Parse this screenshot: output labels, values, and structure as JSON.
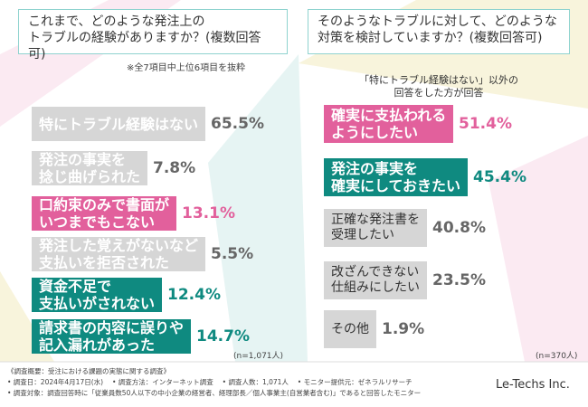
{
  "chart_data": [
    {
      "type": "bar",
      "title": "これまで、どのような発注上の\nトラブルの経験がありますか？(複数回答可)",
      "note": "※全7項目中上位6項目を抜粋",
      "categories": [
        "特にトラブル経験はない",
        "発注の事実を\n捻じ曲げられた",
        "口約束のみで書面が\nいつまでもこない",
        "発注した覚えがないなど\n支払いを拒否された",
        "資金不足で\n支払いがされない",
        "請求書の内容に誤りや\n記入漏れがあった"
      ],
      "values": [
        65.5,
        7.8,
        13.1,
        5.5,
        12.4,
        14.7
      ],
      "value_labels": [
        "65.5%",
        "7.8%",
        "13.1%",
        "5.5%",
        "12.4%",
        "14.7%"
      ],
      "colors": [
        "#d6d6d6",
        "#d6d6d6",
        "#e2609c",
        "#d6d6d6",
        "#0f8a80",
        "#0f8a80"
      ],
      "value_colors": [
        "#666666",
        "#666666",
        "#e2609c",
        "#666666",
        "#0f8a80",
        "#0f8a80"
      ],
      "n_label": "(n=1,071人)"
    },
    {
      "type": "bar",
      "title": "そのようなトラブルに対して、どのような\n対策を検討していますか？(複数回答可)",
      "subtitle": "「特にトラブル経験はない」以外の\n回答をした方が回答",
      "categories": [
        "確実に支払われる\nようにしたい",
        "発注の事実を\n確実にしておきたい",
        "正確な発注書を\n受理したい",
        "改ざんできない\n仕組みにしたい",
        "その他"
      ],
      "values": [
        51.4,
        45.4,
        40.8,
        23.5,
        1.9
      ],
      "value_labels": [
        "51.4%",
        "45.4%",
        "40.8%",
        "23.5%",
        "1.9%"
      ],
      "colors": [
        "#e2609c",
        "#0f8a80",
        "#d6d6d6",
        "#d6d6d6",
        "#d6d6d6"
      ],
      "value_colors": [
        "#e2609c",
        "#0f8a80",
        "#666666",
        "#666666",
        "#666666"
      ],
      "n_label": "(n=370人)"
    }
  ],
  "footer": {
    "lines": [
      "《調査概要：受注における課題の実態に関する調査》",
      "• 調査日：2024年4月17日(水)　 • 調査方法：インターネット調査　 • 調査人数：1,071人　 • モニター提供元：ゼネラルリサーチ",
      "• 調査対象：調査回答時に「従業員数50人以下の中小企業の経営者、経理部長／個人事業主(自営業者含む)」であると回答したモニター"
    ],
    "logo": "Le-Techs Inc."
  }
}
